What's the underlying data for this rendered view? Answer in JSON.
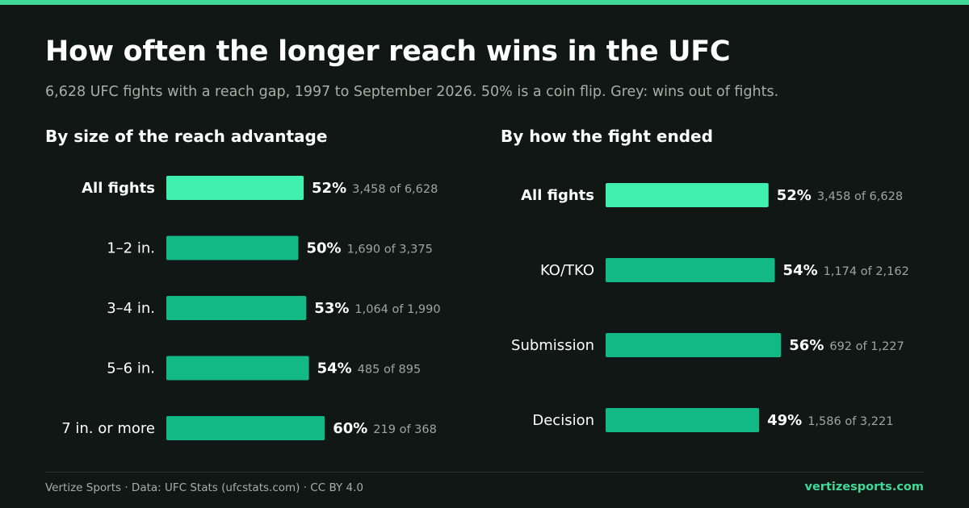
{
  "title": "How often the longer reach wins in the UFC",
  "subtitle": "6,628 UFC fights with a reach gap, 1997 to September 2026. 50% is a coin flip. Grey: wins out of fights.",
  "colors": {
    "background": "#111714",
    "accent": "#3fd99a",
    "highlight_bar": "#3ff0ae",
    "bar": "#13b985",
    "muted_text": "#9ea6a2"
  },
  "chart_data": [
    {
      "type": "bar",
      "orientation": "horizontal",
      "title": "By size of the reach advantage",
      "categories": [
        "All fights",
        "1–2 in.",
        "3–4 in.",
        "5–6 in.",
        "7 in. or more"
      ],
      "values": [
        52,
        50,
        53,
        54,
        60
      ],
      "value_labels": [
        "52%",
        "50%",
        "53%",
        "54%",
        "60%"
      ],
      "count_labels": [
        "3,458 of 6,628",
        "1,690 of 3,375",
        "1,064 of 1,990",
        "485 of 895",
        "219 of 368"
      ],
      "highlight_index": 0
    },
    {
      "type": "bar",
      "orientation": "horizontal",
      "title": "By how the fight ended",
      "categories": [
        "All fights",
        "KO/TKO",
        "Submission",
        "Decision"
      ],
      "values": [
        52,
        54,
        56,
        49
      ],
      "value_labels": [
        "52%",
        "54%",
        "56%",
        "49%"
      ],
      "count_labels": [
        "3,458 of 6,628",
        "1,174 of 2,162",
        "692 of 1,227",
        "1,586 of 3,221"
      ],
      "highlight_index": 0
    }
  ],
  "footer": {
    "source": "Vertize Sports · Data: UFC Stats (ufcstats.com) · CC BY 4.0",
    "site": "vertizesports.com"
  }
}
